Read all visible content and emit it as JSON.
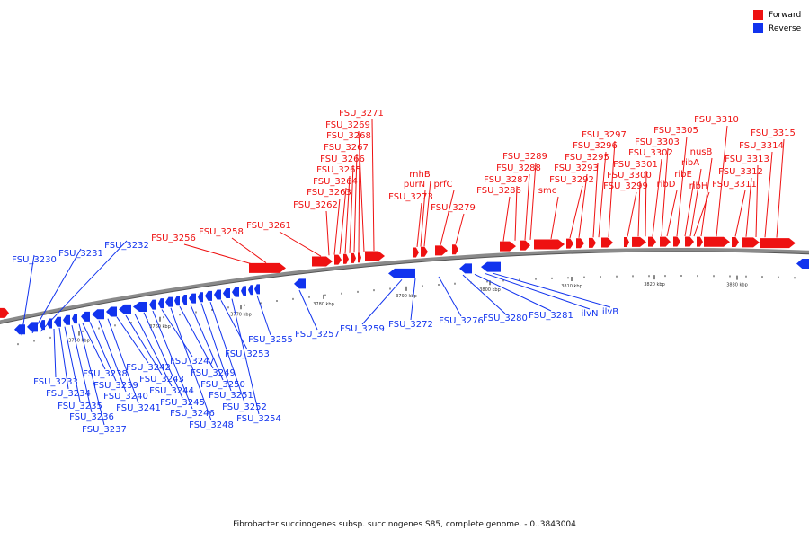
{
  "legend": [
    {
      "label": "Forward",
      "color": "#ee1111"
    },
    {
      "label": "Reverse",
      "color": "#1133ee"
    }
  ],
  "caption": "Fibrobacter succinogenes subsp. succinogenes S85, complete genome. - 0..3843004",
  "colors": {
    "forward": "#ee1111",
    "reverse": "#1133ee",
    "backbone": "#8a8a8a"
  },
  "ruler": [
    "3750 kbp",
    "3760 kbp",
    "3770 kbp",
    "3780 kbp",
    "3790 kbp",
    "3800 kbp",
    "3810 kbp",
    "3820 kbp",
    "3830 kbp"
  ],
  "forward_labels": [
    "FSU_3256",
    "FSU_3258",
    "FSU_3261",
    "FSU_3262",
    "FSU_3263",
    "FSU_3264",
    "FSU_3265",
    "FSU_3266",
    "FSU_3267",
    "FSU_3268",
    "FSU_3269",
    "FSU_3271",
    "FSU_3273",
    "purN",
    "rnhB",
    "prfC",
    "FSU_3279",
    "FSU_3286",
    "FSU_3287",
    "FSU_3288",
    "FSU_3289",
    "smc",
    "FSU_3292",
    "FSU_3293",
    "FSU_3295",
    "FSU_3296",
    "FSU_3297",
    "FSU_3299",
    "FSU_3300",
    "FSU_3301",
    "FSU_3302",
    "FSU_3303",
    "ribD",
    "FSU_3305",
    "ribE",
    "ribA",
    "ribH",
    "nusB",
    "FSU_3310",
    "FSU_3311",
    "FSU_3312",
    "FSU_3313",
    "FSU_3314",
    "FSU_3315"
  ],
  "reverse_labels": [
    "FSU_3230",
    "FSU_3231",
    "FSU_3232",
    "FSU_3233",
    "FSU_3234",
    "FSU_3235",
    "FSU_3236",
    "FSU_3237",
    "FSU_3238",
    "FSU_3239",
    "FSU_3240",
    "FSU_3241",
    "FSU_3242",
    "FSU_3243",
    "FSU_3244",
    "FSU_3245",
    "FSU_3246",
    "FSU_3247",
    "FSU_3248",
    "FSU_3249",
    "FSU_3250",
    "FSU_3251",
    "FSU_3252",
    "FSU_3253",
    "FSU_3254",
    "FSU_3255",
    "FSU_3257",
    "FSU_3259",
    "FSU_3272",
    "FSU_3276",
    "FSU_3280",
    "FSU_3281",
    "ilvN",
    "ilvB"
  ]
}
